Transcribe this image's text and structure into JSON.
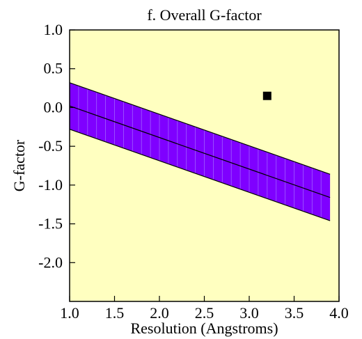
{
  "chart_data": {
    "type": "line",
    "title": "f. Overall G-factor",
    "xlabel": "Resolution (Angstroms)",
    "ylabel": "G-factor",
    "xlim": [
      1.0,
      4.0
    ],
    "ylim": [
      -2.5,
      1.0
    ],
    "xticks": [
      "1.0",
      "1.5",
      "2.0",
      "2.5",
      "3.0",
      "3.5",
      "4.0"
    ],
    "yticks": [
      "1.0",
      "0.5",
      "0.0",
      "-0.5",
      "-1.0",
      "-1.5",
      "-2.0"
    ],
    "band": {
      "x_range": [
        1.0,
        3.9
      ],
      "center": [
        0.02,
        -1.16
      ],
      "upper": [
        0.32,
        -0.86
      ],
      "lower": [
        -0.28,
        -1.46
      ],
      "column_step": 0.1
    },
    "point": {
      "x": 3.2,
      "y": 0.15
    },
    "colors": {
      "plot_bg": "#ffffc0",
      "band": "#7f00ff",
      "band_stripe": "#a060ff",
      "line": "#000000",
      "point": "#000000"
    }
  }
}
